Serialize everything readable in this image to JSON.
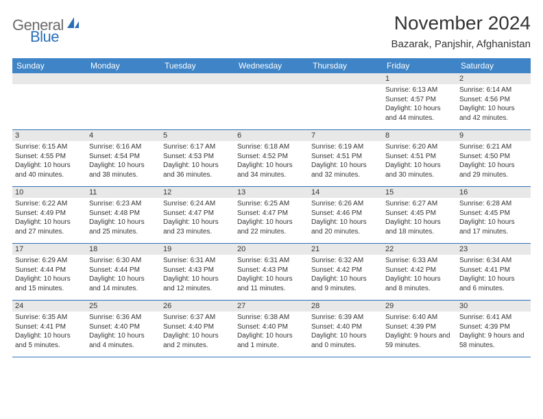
{
  "brand": {
    "general": "General",
    "blue": "Blue"
  },
  "title": "November 2024",
  "location": "Bazarak, Panjshir, Afghanistan",
  "colors": {
    "header_bg": "#3e84c6",
    "rule": "#2a6fb5",
    "daynum_bg": "#e8e8e8",
    "text": "#333333",
    "logo_gray": "#6a6a6a",
    "logo_blue": "#2a6fb5",
    "page_bg": "#ffffff"
  },
  "typography": {
    "title_fontsize": 28,
    "subtitle_fontsize": 15,
    "weekday_fontsize": 12,
    "daynum_fontsize": 11,
    "body_fontsize": 10
  },
  "weekdays": [
    "Sunday",
    "Monday",
    "Tuesday",
    "Wednesday",
    "Thursday",
    "Friday",
    "Saturday"
  ],
  "weeks": [
    [
      {
        "n": "",
        "sr": "",
        "ss": "",
        "dl": ""
      },
      {
        "n": "",
        "sr": "",
        "ss": "",
        "dl": ""
      },
      {
        "n": "",
        "sr": "",
        "ss": "",
        "dl": ""
      },
      {
        "n": "",
        "sr": "",
        "ss": "",
        "dl": ""
      },
      {
        "n": "",
        "sr": "",
        "ss": "",
        "dl": ""
      },
      {
        "n": "1",
        "sr": "Sunrise: 6:13 AM",
        "ss": "Sunset: 4:57 PM",
        "dl": "Daylight: 10 hours and 44 minutes."
      },
      {
        "n": "2",
        "sr": "Sunrise: 6:14 AM",
        "ss": "Sunset: 4:56 PM",
        "dl": "Daylight: 10 hours and 42 minutes."
      }
    ],
    [
      {
        "n": "3",
        "sr": "Sunrise: 6:15 AM",
        "ss": "Sunset: 4:55 PM",
        "dl": "Daylight: 10 hours and 40 minutes."
      },
      {
        "n": "4",
        "sr": "Sunrise: 6:16 AM",
        "ss": "Sunset: 4:54 PM",
        "dl": "Daylight: 10 hours and 38 minutes."
      },
      {
        "n": "5",
        "sr": "Sunrise: 6:17 AM",
        "ss": "Sunset: 4:53 PM",
        "dl": "Daylight: 10 hours and 36 minutes."
      },
      {
        "n": "6",
        "sr": "Sunrise: 6:18 AM",
        "ss": "Sunset: 4:52 PM",
        "dl": "Daylight: 10 hours and 34 minutes."
      },
      {
        "n": "7",
        "sr": "Sunrise: 6:19 AM",
        "ss": "Sunset: 4:51 PM",
        "dl": "Daylight: 10 hours and 32 minutes."
      },
      {
        "n": "8",
        "sr": "Sunrise: 6:20 AM",
        "ss": "Sunset: 4:51 PM",
        "dl": "Daylight: 10 hours and 30 minutes."
      },
      {
        "n": "9",
        "sr": "Sunrise: 6:21 AM",
        "ss": "Sunset: 4:50 PM",
        "dl": "Daylight: 10 hours and 29 minutes."
      }
    ],
    [
      {
        "n": "10",
        "sr": "Sunrise: 6:22 AM",
        "ss": "Sunset: 4:49 PM",
        "dl": "Daylight: 10 hours and 27 minutes."
      },
      {
        "n": "11",
        "sr": "Sunrise: 6:23 AM",
        "ss": "Sunset: 4:48 PM",
        "dl": "Daylight: 10 hours and 25 minutes."
      },
      {
        "n": "12",
        "sr": "Sunrise: 6:24 AM",
        "ss": "Sunset: 4:47 PM",
        "dl": "Daylight: 10 hours and 23 minutes."
      },
      {
        "n": "13",
        "sr": "Sunrise: 6:25 AM",
        "ss": "Sunset: 4:47 PM",
        "dl": "Daylight: 10 hours and 22 minutes."
      },
      {
        "n": "14",
        "sr": "Sunrise: 6:26 AM",
        "ss": "Sunset: 4:46 PM",
        "dl": "Daylight: 10 hours and 20 minutes."
      },
      {
        "n": "15",
        "sr": "Sunrise: 6:27 AM",
        "ss": "Sunset: 4:45 PM",
        "dl": "Daylight: 10 hours and 18 minutes."
      },
      {
        "n": "16",
        "sr": "Sunrise: 6:28 AM",
        "ss": "Sunset: 4:45 PM",
        "dl": "Daylight: 10 hours and 17 minutes."
      }
    ],
    [
      {
        "n": "17",
        "sr": "Sunrise: 6:29 AM",
        "ss": "Sunset: 4:44 PM",
        "dl": "Daylight: 10 hours and 15 minutes."
      },
      {
        "n": "18",
        "sr": "Sunrise: 6:30 AM",
        "ss": "Sunset: 4:44 PM",
        "dl": "Daylight: 10 hours and 14 minutes."
      },
      {
        "n": "19",
        "sr": "Sunrise: 6:31 AM",
        "ss": "Sunset: 4:43 PM",
        "dl": "Daylight: 10 hours and 12 minutes."
      },
      {
        "n": "20",
        "sr": "Sunrise: 6:31 AM",
        "ss": "Sunset: 4:43 PM",
        "dl": "Daylight: 10 hours and 11 minutes."
      },
      {
        "n": "21",
        "sr": "Sunrise: 6:32 AM",
        "ss": "Sunset: 4:42 PM",
        "dl": "Daylight: 10 hours and 9 minutes."
      },
      {
        "n": "22",
        "sr": "Sunrise: 6:33 AM",
        "ss": "Sunset: 4:42 PM",
        "dl": "Daylight: 10 hours and 8 minutes."
      },
      {
        "n": "23",
        "sr": "Sunrise: 6:34 AM",
        "ss": "Sunset: 4:41 PM",
        "dl": "Daylight: 10 hours and 6 minutes."
      }
    ],
    [
      {
        "n": "24",
        "sr": "Sunrise: 6:35 AM",
        "ss": "Sunset: 4:41 PM",
        "dl": "Daylight: 10 hours and 5 minutes."
      },
      {
        "n": "25",
        "sr": "Sunrise: 6:36 AM",
        "ss": "Sunset: 4:40 PM",
        "dl": "Daylight: 10 hours and 4 minutes."
      },
      {
        "n": "26",
        "sr": "Sunrise: 6:37 AM",
        "ss": "Sunset: 4:40 PM",
        "dl": "Daylight: 10 hours and 2 minutes."
      },
      {
        "n": "27",
        "sr": "Sunrise: 6:38 AM",
        "ss": "Sunset: 4:40 PM",
        "dl": "Daylight: 10 hours and 1 minute."
      },
      {
        "n": "28",
        "sr": "Sunrise: 6:39 AM",
        "ss": "Sunset: 4:40 PM",
        "dl": "Daylight: 10 hours and 0 minutes."
      },
      {
        "n": "29",
        "sr": "Sunrise: 6:40 AM",
        "ss": "Sunset: 4:39 PM",
        "dl": "Daylight: 9 hours and 59 minutes."
      },
      {
        "n": "30",
        "sr": "Sunrise: 6:41 AM",
        "ss": "Sunset: 4:39 PM",
        "dl": "Daylight: 9 hours and 58 minutes."
      }
    ]
  ]
}
